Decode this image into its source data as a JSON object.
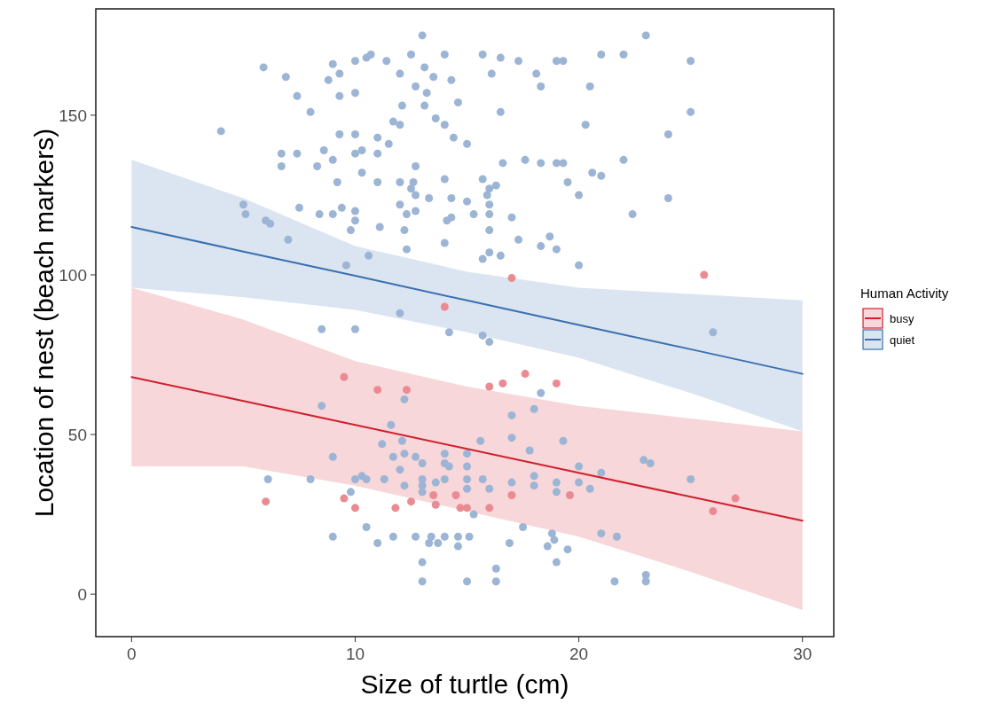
{
  "chart_data": {
    "type": "scatter",
    "xlabel": "Size of turtle (cm)",
    "ylabel": "Location of nest (beach markers)",
    "legend_title": "Human Activity",
    "legend": "right",
    "xlim": [
      -1.6,
      31.4
    ],
    "ylim": [
      -13.3,
      183.3
    ],
    "xticks": [
      0,
      10,
      20,
      30
    ],
    "yticks": [
      0,
      50,
      100,
      150
    ],
    "series": [
      {
        "marker": "circle",
        "color": "#9db5d4",
        "x": [
          4.0,
          5.9,
          6.9,
          7.4,
          8.0,
          9.0,
          8.8,
          9.3,
          10.0,
          10.5,
          10.7,
          11.4,
          9.3,
          10.0,
          12.5,
          13.0,
          14.0,
          12.0,
          13.1,
          13.5,
          14.3,
          12.7,
          13.2,
          12.1,
          13.1,
          14.6,
          13.6,
          11.7,
          12.0,
          14.0,
          14.4,
          15.0,
          9.3,
          10.0,
          11.0,
          11.5,
          8.6,
          6.7,
          7.4,
          6.7,
          8.3,
          9.0,
          10.0,
          10.3,
          11.0,
          12.7,
          10.3,
          9.2,
          11.0,
          12.0,
          12.6,
          12.5,
          12.7,
          14.0,
          13.3,
          14.3,
          15.0,
          5.0,
          5.1,
          6.0,
          6.2,
          7.0,
          7.5,
          8.4,
          9.0,
          9.4,
          10.0,
          10.0,
          9.8,
          11.1,
          12.0,
          12.3,
          12.7,
          12.2,
          14.0,
          12.3,
          14.1,
          14.3,
          15.3,
          9.6,
          10.6,
          23.0,
          15.7,
          16.5,
          17.3,
          16.1,
          18.1,
          19.0,
          19.3,
          18.3,
          21.0,
          22.0,
          25.0,
          20.5,
          16.5,
          20.3,
          25.0,
          24.0,
          16.6,
          17.6,
          18.3,
          19.0,
          19.3,
          22.0,
          20.6,
          21.0,
          19.5,
          15.7,
          16.3,
          16.0,
          15.9,
          16.0,
          20.0,
          24.0,
          16.0,
          17.0,
          22.4,
          16.0,
          17.3,
          18.7,
          18.3,
          19.0,
          16.0,
          16.5,
          15.7,
          20.0,
          12.0,
          8.5,
          10.0,
          14.2,
          12.2,
          8.5,
          11.6,
          12.1,
          11.2,
          9.0,
          11.7,
          12.2,
          12.7,
          13.0,
          14.0,
          14.0,
          14.2,
          15.0,
          15.0,
          12.0,
          6.1,
          8.0,
          10.0,
          10.3,
          10.5,
          11.3,
          12.2,
          13.0,
          13.0,
          13.0,
          13.6,
          14.0,
          15.0,
          15.0,
          9.8,
          15.3,
          10.5,
          9.0,
          11.0,
          11.7,
          12.7,
          13.4,
          13.3,
          13.7,
          14.0,
          14.6,
          14.6,
          15.1,
          13.0,
          13.0,
          15.0,
          26.0,
          15.7,
          16.0,
          18.3,
          18.0,
          17.0,
          17.0,
          15.6,
          19.3,
          17.8,
          20.0,
          21.0,
          22.9,
          23.2,
          25.0,
          15.7,
          16.0,
          17.0,
          18.0,
          18.0,
          19.0,
          19.0,
          20.0,
          20.5,
          17.5,
          16.9,
          18.8,
          18.9,
          18.6,
          19.5,
          21.0,
          21.7,
          19.0,
          16.3,
          16.3,
          21.6,
          23.0,
          23.0
        ],
        "values": [
          145,
          165,
          162,
          156,
          151,
          166,
          161,
          163,
          167,
          168,
          169,
          167,
          156,
          157,
          169,
          175,
          169,
          163,
          165,
          162,
          161,
          159,
          157,
          153,
          153,
          154,
          149,
          148,
          147,
          147,
          143,
          141,
          144,
          144,
          143,
          141,
          139,
          138,
          138,
          134,
          134,
          136,
          138,
          139,
          138,
          134,
          132,
          129,
          129,
          129,
          129,
          127,
          125,
          130,
          124,
          124,
          123,
          122,
          119,
          117,
          116,
          111,
          121,
          119,
          119,
          121,
          120,
          117,
          114,
          115,
          122,
          119,
          120,
          114,
          110,
          108,
          117,
          118,
          119,
          103,
          106,
          175,
          169,
          168,
          167,
          163,
          163,
          167,
          167,
          159,
          169,
          169,
          167,
          159,
          151,
          147,
          151,
          144,
          135,
          136,
          135,
          135,
          135,
          136,
          132,
          131,
          129,
          130,
          128,
          127,
          125,
          122,
          125,
          124,
          119,
          118,
          119,
          114,
          111,
          112,
          109,
          108,
          107,
          106,
          105,
          103,
          88,
          83,
          83,
          82,
          61,
          59,
          53,
          48,
          47,
          43,
          43,
          44,
          43,
          41,
          44,
          41,
          40,
          44,
          40,
          39,
          36,
          36,
          36,
          37,
          36,
          36,
          34,
          36,
          34,
          32,
          35,
          36,
          36,
          33,
          32,
          25,
          21,
          18,
          16,
          18,
          18,
          18,
          16,
          16,
          18,
          18,
          15,
          18,
          10,
          4,
          4,
          82,
          81,
          79,
          63,
          58,
          56,
          49,
          48,
          48,
          45,
          40,
          38,
          42,
          41,
          36,
          36,
          33,
          35,
          37,
          34,
          35,
          32,
          35,
          33,
          21,
          16,
          19,
          17,
          15,
          14,
          19,
          18,
          10,
          8,
          4,
          4,
          6,
          4
        ]
      },
      {
        "marker": "circle",
        "color": "#ea8b93",
        "x": [
          17.0,
          25.6,
          14.0,
          9.5,
          11.0,
          12.3,
          6.0,
          9.5,
          10.0,
          11.8,
          12.5,
          13.5,
          13.6,
          14.5,
          14.7,
          15.0,
          17.6,
          16.0,
          16.6,
          19.0,
          17.0,
          19.6,
          16.0,
          27.0,
          26.0
        ],
        "values": [
          99,
          100,
          90,
          68,
          64,
          64,
          29,
          30,
          27,
          27,
          29,
          31,
          28,
          31,
          27,
          27,
          69,
          65,
          66,
          66,
          31,
          31,
          27,
          30,
          26
        ]
      },
      {
        "type": "line",
        "name": "busy",
        "color": "#d0202e",
        "x": [
          0,
          5,
          10,
          15,
          20,
          25,
          30
        ],
        "values": [
          68,
          60.5,
          53,
          45.5,
          38,
          30.5,
          23
        ],
        "lower": [
          40,
          40,
          34,
          26,
          18,
          7,
          -5
        ],
        "upper": [
          96,
          86,
          73,
          65,
          59,
          55,
          51
        ]
      },
      {
        "type": "line",
        "name": "quiet",
        "color": "#3a70b0",
        "x": [
          0,
          5,
          10,
          15,
          20,
          25,
          30
        ],
        "values": [
          115,
          107.3,
          99.7,
          92,
          84.3,
          76.7,
          69
        ],
        "lower": [
          96,
          93,
          89,
          82,
          74,
          63,
          51
        ],
        "upper": [
          136,
          124,
          109,
          101,
          96,
          94,
          92
        ]
      }
    ]
  }
}
